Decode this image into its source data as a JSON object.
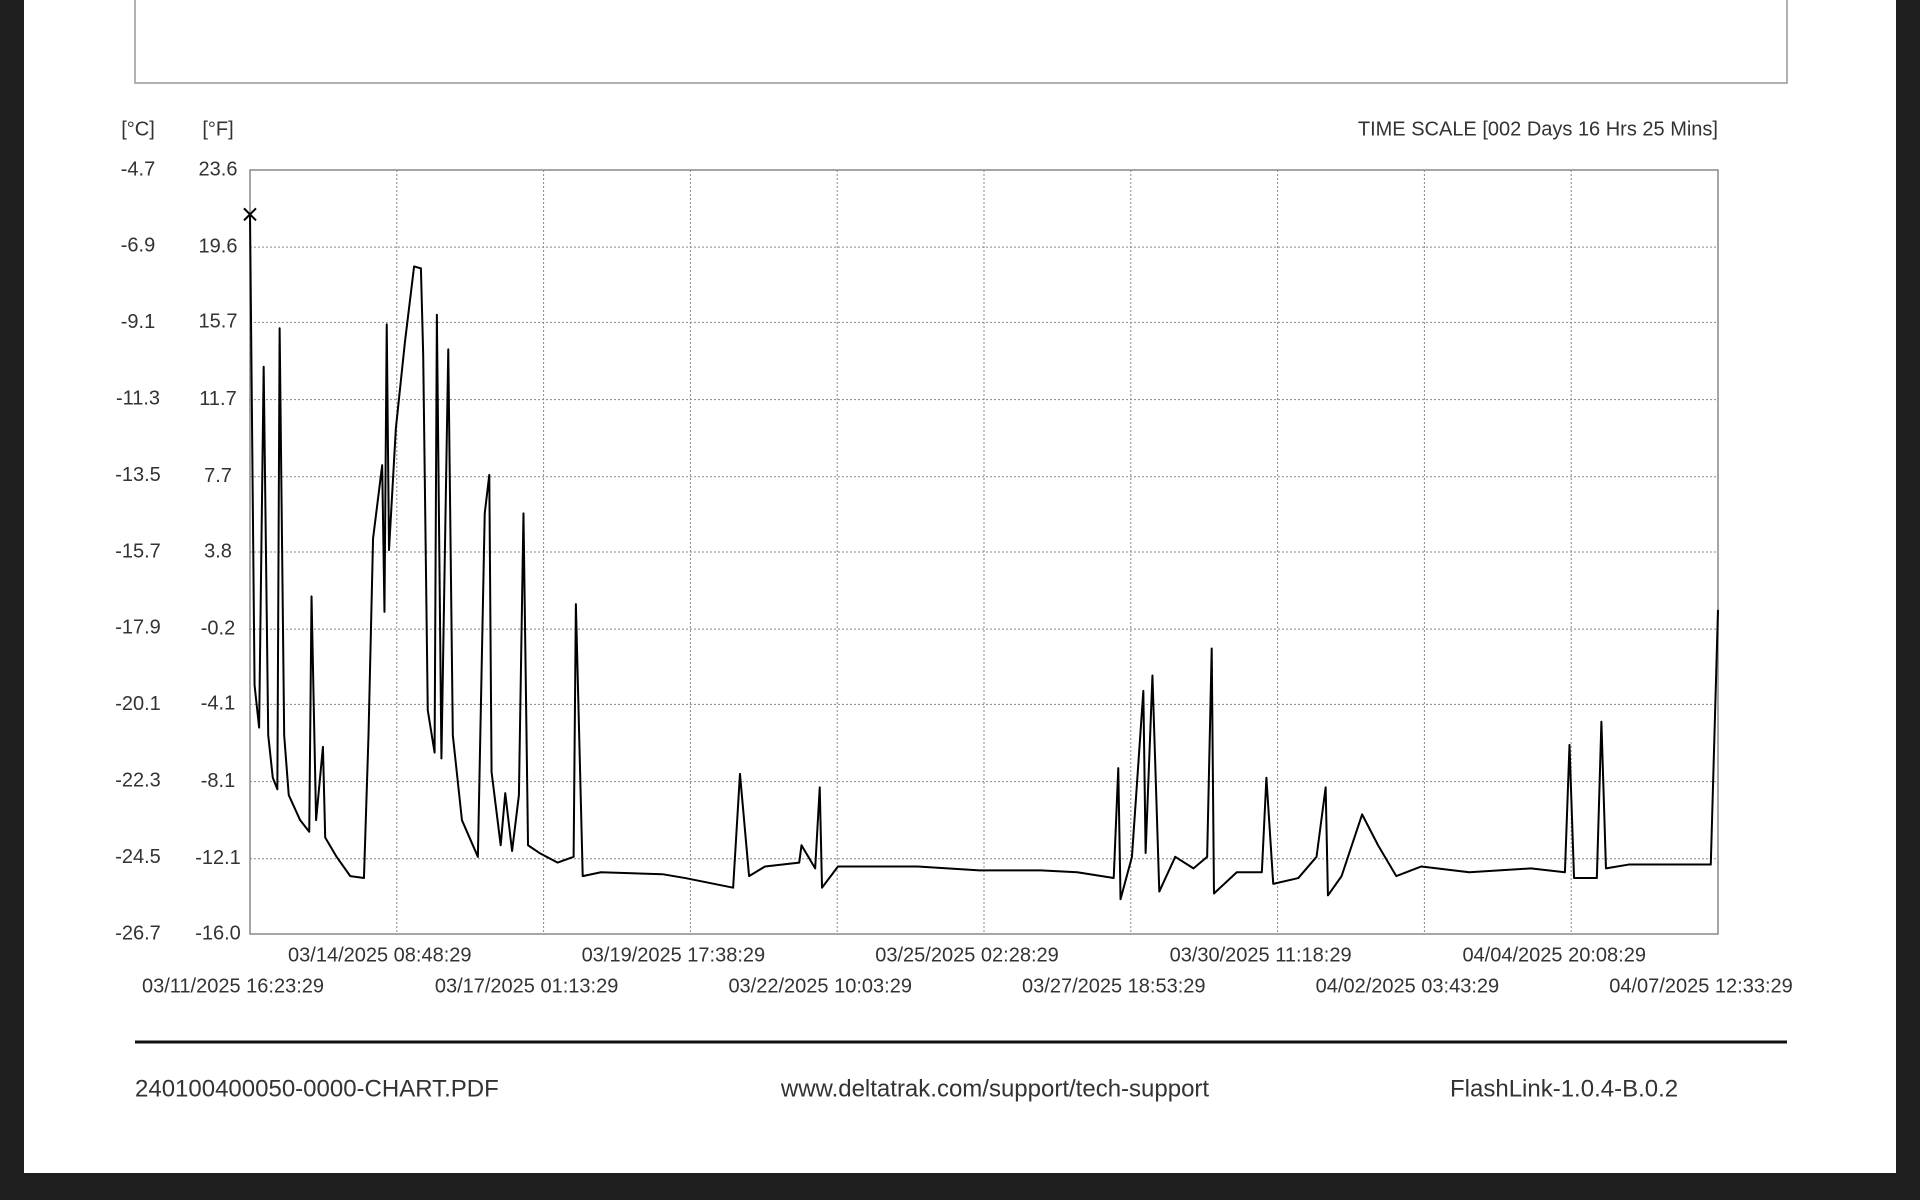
{
  "chart_data": {
    "type": "line",
    "y_label": "[°F]",
    "y2_label": "[°C]",
    "time_scale": "TIME SCALE [002 Days 16 Hrs 25 Mins]",
    "x": [
      "03/11/2025 16:23:29",
      "03/11/2025 18:23:29",
      "03/11/2025 20:23:29",
      "03/11/2025 22:23:29",
      "03/12/2025 00:23:29",
      "03/12/2025 02:23:29",
      "03/12/2025 04:23:29",
      "03/12/2025 05:23:29",
      "03/12/2025 07:23:29",
      "03/12/2025 09:23:29",
      "03/12/2025 14:23:29",
      "03/12/2025 18:23:29",
      "03/12/2025 19:23:29",
      "03/12/2025 21:23:29",
      "03/13/2025 00:23:29",
      "03/13/2025 01:23:29",
      "03/13/2025 06:23:29",
      "03/13/2025 12:23:29",
      "03/13/2025 18:23:29",
      "03/13/2025 20:23:29",
      "03/13/2025 22:23:29",
      "03/14/2025 02:23:29",
      "03/14/2025 03:23:29",
      "03/14/2025 04:23:29",
      "03/14/2025 05:23:29",
      "03/14/2025 08:23:29",
      "03/14/2025 12:23:29",
      "03/14/2025 16:23:29",
      "03/14/2025 19:23:29",
      "03/14/2025 20:23:29",
      "03/14/2025 22:23:29",
      "03/15/2025 01:23:29",
      "03/15/2025 02:23:29",
      "03/15/2025 04:23:29",
      "03/15/2025 07:23:29",
      "03/15/2025 09:23:29",
      "03/15/2025 13:23:29",
      "03/15/2025 20:23:29",
      "03/15/2025 23:23:29",
      "03/16/2025 01:23:29",
      "03/16/2025 02:23:29",
      "03/16/2025 06:23:29",
      "03/16/2025 08:23:29",
      "03/16/2025 11:23:29",
      "03/16/2025 14:23:29",
      "03/16/2025 16:23:29",
      "03/16/2025 18:23:29",
      "03/16/2025 23:23:29",
      "03/17/2025 07:23:29",
      "03/17/2025 14:23:29",
      "03/17/2025 15:23:29",
      "03/17/2025 18:23:29",
      "03/18/2025 02:23:29",
      "03/19/2025 05:23:29",
      "03/19/2025 15:23:29",
      "03/20/2025 12:23:29",
      "03/20/2025 15:23:29",
      "03/20/2025 19:23:29",
      "03/21/2025 02:23:29",
      "03/21/2025 17:23:29",
      "03/21/2025 18:23:29",
      "03/22/2025 00:23:29",
      "03/22/2025 02:23:29",
      "03/22/2025 03:23:29",
      "03/22/2025 10:23:29",
      "03/23/2025 21:23:29",
      "03/25/2025 00:23:29",
      "03/26/2025 03:23:29",
      "03/26/2025 19:23:29",
      "03/27/2025 11:23:29",
      "03/27/2025 13:23:29",
      "03/27/2025 14:23:29",
      "03/27/2025 19:23:29",
      "03/28/2025 00:23:29",
      "03/28/2025 01:23:29",
      "03/28/2025 04:23:29",
      "03/28/2025 07:23:29",
      "03/28/2025 14:23:29",
      "03/28/2025 22:23:29",
      "03/29/2025 04:23:29",
      "03/29/2025 06:23:29",
      "03/29/2025 07:23:29",
      "03/29/2025 17:23:29",
      "03/30/2025 04:23:29",
      "03/30/2025 06:23:29",
      "03/30/2025 09:23:29",
      "03/30/2025 20:23:29",
      "03/31/2025 04:23:29",
      "03/31/2025 08:23:29",
      "03/31/2025 09:23:29",
      "03/31/2025 15:23:29",
      "04/01/2025 00:23:29",
      "04/01/2025 07:23:29",
      "04/01/2025 15:23:29",
      "04/02/2025 02:23:29",
      "04/02/2025 23:23:29",
      "04/04/2025 02:23:29",
      "04/04/2025 17:23:29",
      "04/04/2025 19:23:29",
      "04/04/2025 21:23:29",
      "04/05/2025 07:23:29",
      "04/05/2025 09:23:29",
      "04/05/2025 11:23:29",
      "04/05/2025 21:23:29",
      "04/07/2025 09:23:29",
      "04/07/2025 12:33:29"
    ],
    "series": [
      {
        "color": "#000000",
        "values": [
          21.3,
          -3.1,
          -5.3,
          13.4,
          -5.7,
          -7.9,
          -8.5,
          15.4,
          -5.7,
          -8.8,
          -10.1,
          -10.7,
          1.5,
          -10.1,
          -6.3,
          -11.0,
          -12.0,
          -13.0,
          -13.1,
          -5.7,
          4.5,
          8.3,
          0.7,
          15.6,
          3.9,
          10.2,
          14.7,
          18.6,
          18.5,
          14.0,
          -4.4,
          -6.6,
          16.1,
          -6.9,
          14.3,
          -5.7,
          -10.1,
          -12.0,
          5.8,
          7.8,
          -7.6,
          -11.4,
          -8.7,
          -11.7,
          -8.8,
          5.8,
          -11.4,
          -11.8,
          -12.3,
          -12.0,
          1.1,
          -13.0,
          -12.8,
          -12.9,
          -13.1,
          -13.6,
          -7.7,
          -13.0,
          -12.5,
          -12.3,
          -11.4,
          -12.6,
          -8.4,
          -13.6,
          -12.5,
          -12.5,
          -12.7,
          -12.7,
          -12.8,
          -13.1,
          -7.4,
          -14.2,
          -12.0,
          -3.4,
          -11.8,
          -2.6,
          -13.8,
          -12.0,
          -12.6,
          -12.0,
          -1.2,
          -13.9,
          -12.8,
          -12.8,
          -7.9,
          -13.4,
          -13.1,
          -12.0,
          -8.4,
          -14.0,
          -13.0,
          -9.8,
          -11.4,
          -13.0,
          -12.5,
          -12.8,
          -12.6,
          -12.8,
          -6.2,
          -13.1,
          -13.1,
          -5.0,
          -12.6,
          -12.4,
          -12.4,
          0.8
        ]
      }
    ],
    "xlim": [
      "03/11/2025 16:23:29",
      "04/07/2025 12:33:29"
    ],
    "xticks": [
      "03/11/2025 16:23:29",
      "03/14/2025 08:48:29",
      "03/17/2025 01:13:29",
      "03/19/2025 17:38:29",
      "03/22/2025 10:03:29",
      "03/25/2025 02:28:29",
      "03/27/2025 18:53:29",
      "03/30/2025 11:18:29",
      "04/02/2025 03:43:29",
      "04/04/2025 20:08:29",
      "04/07/2025 12:33:29"
    ],
    "ylim": [
      -16.0,
      23.6
    ],
    "yticks": [
      {
        "value": -16,
        "label": "-16.0"
      },
      -12.1,
      -8.1,
      -4.1,
      -0.2,
      3.8,
      7.7,
      11.7,
      15.7,
      19.6,
      23.6
    ],
    "y2lim": [
      -26.7,
      -4.7
    ],
    "y2ticks": [
      -26.7,
      -24.5,
      -22.3,
      -20.1,
      -17.9,
      -15.7,
      -13.5,
      -11.3,
      -9.1,
      -6.9,
      -4.7
    ],
    "grid": true
  },
  "footer": {
    "file": "240100400050-0000-CHART.PDF",
    "url": "www.deltatrak.com/support/tech-support",
    "version": "FlashLink-1.0.4-B.0.2"
  }
}
